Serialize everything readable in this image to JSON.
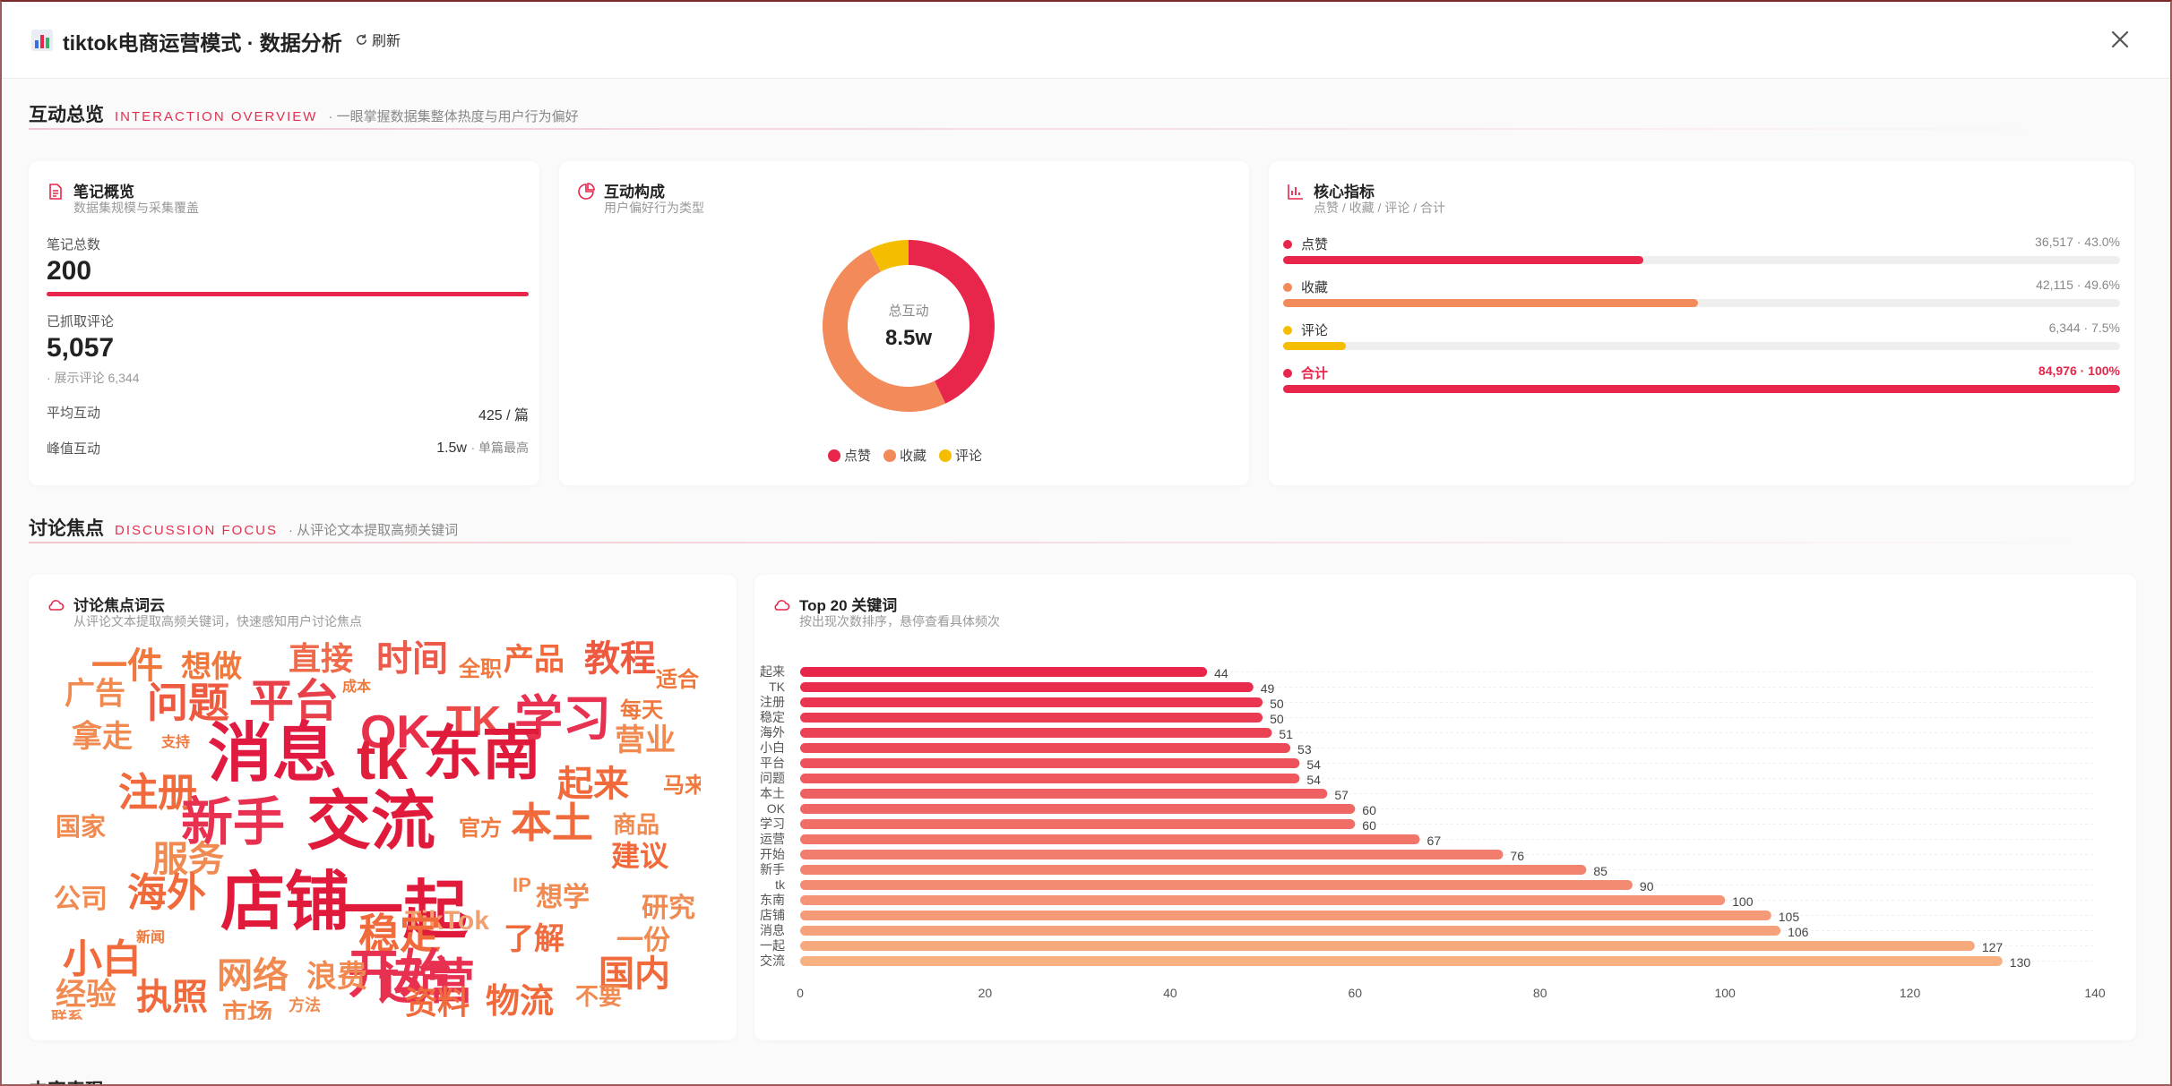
{
  "window": {
    "title": "tiktok电商运营模式 · 数据分析",
    "refresh_label": "刷新",
    "close_label": "×"
  },
  "colors": {
    "accent": "#e8254a",
    "like": "#e8254a",
    "collect": "#f28a5a",
    "comment": "#f5bd00"
  },
  "section1": {
    "title": "互动总览",
    "en": "INTERACTION OVERVIEW",
    "sub": "· 一眼掌握数据集整体热度与用户行为偏好"
  },
  "notes_card": {
    "title": "笔记概览",
    "subtitle": "数据集规模与采集覆盖",
    "total_label": "笔记总数",
    "total_value": "200",
    "comments_label": "已抓取评论",
    "comments_value": "5,057",
    "comments_note": "· 展示评论 6,344",
    "avg_label": "平均互动",
    "avg_value": "425 / 篇",
    "peak_label": "峰值互动",
    "peak_value": "1.5w",
    "peak_note": "· 单篇最高"
  },
  "composition_card": {
    "title": "互动构成",
    "subtitle": "用户偏好行为类型",
    "center_label": "总互动",
    "center_value": "8.5w",
    "legend": [
      "点赞",
      "收藏",
      "评论"
    ],
    "shares": [
      0.43,
      0.496,
      0.075
    ]
  },
  "core_card": {
    "title": "核心指标",
    "subtitle": "点赞 / 收藏 / 评论 / 合计",
    "rows": [
      {
        "name": "点赞",
        "value": "36,517 · 43.0%",
        "pct": 0.43
      },
      {
        "name": "收藏",
        "value": "42,115 · 49.6%",
        "pct": 0.496
      },
      {
        "name": "评论",
        "value": "6,344 · 7.5%",
        "pct": 0.075
      },
      {
        "name": "合计",
        "value": "84,976 · 100%",
        "pct": 1.0
      }
    ]
  },
  "section2": {
    "title": "讨论焦点",
    "en": "DISCUSSION FOCUS",
    "sub": "· 从评论文本提取高频关键词"
  },
  "wordcloud_card": {
    "title": "讨论焦点词云",
    "subtitle": "从评论文本提取高频关键词，快速感知用户讨论焦点",
    "words": [
      {
        "t": "一件",
        "s": 40,
        "c": "#f0783c"
      },
      {
        "t": "想做",
        "s": 34,
        "c": "#f0783c"
      },
      {
        "t": "直接",
        "s": 36,
        "c": "#ef6a4a"
      },
      {
        "t": "时间",
        "s": 40,
        "c": "#ee5a4a"
      },
      {
        "t": "全职",
        "s": 24,
        "c": "#f0783c"
      },
      {
        "t": "产品",
        "s": 34,
        "c": "#f06a3c"
      },
      {
        "t": "教程",
        "s": 40,
        "c": "#ee5a40"
      },
      {
        "t": "适合",
        "s": 24,
        "c": "#f0783c"
      },
      {
        "t": "广告",
        "s": 34,
        "c": "#f08a50"
      },
      {
        "t": "问题",
        "s": 46,
        "c": "#ee5a40"
      },
      {
        "t": "平台",
        "s": 50,
        "c": "#e8404a"
      },
      {
        "t": "成本",
        "s": 16,
        "c": "#f0783c"
      },
      {
        "t": "OK",
        "s": 52,
        "c": "#e8304a"
      },
      {
        "t": "TK",
        "s": 46,
        "c": "#ee4a4a"
      },
      {
        "t": "学习",
        "s": 54,
        "c": "#e83050"
      },
      {
        "t": "每天",
        "s": 24,
        "c": "#f0783c"
      },
      {
        "t": "营业",
        "s": 34,
        "c": "#f08a50"
      },
      {
        "t": "拿走",
        "s": 34,
        "c": "#f08a50"
      },
      {
        "t": "支持",
        "s": 16,
        "c": "#f0783c"
      },
      {
        "t": "消息",
        "s": 72,
        "c": "#e01a40"
      },
      {
        "t": "tk",
        "s": 64,
        "c": "#e0203a"
      },
      {
        "t": "东南",
        "s": 66,
        "c": "#e01a3a"
      },
      {
        "t": "注册",
        "s": 44,
        "c": "#f06a3c"
      },
      {
        "t": "起来",
        "s": 40,
        "c": "#f06a3c"
      },
      {
        "t": "马来",
        "s": 24,
        "c": "#f0783c"
      },
      {
        "t": "国家",
        "s": 28,
        "c": "#f08a50"
      },
      {
        "t": "新手",
        "s": 58,
        "c": "#e83050"
      },
      {
        "t": "交流",
        "s": 72,
        "c": "#e01a3a"
      },
      {
        "t": "官方",
        "s": 24,
        "c": "#f0783c"
      },
      {
        "t": "本土",
        "s": 46,
        "c": "#f06a3c"
      },
      {
        "t": "商品",
        "s": 26,
        "c": "#f08a50"
      },
      {
        "t": "服务",
        "s": 40,
        "c": "#f08a50"
      },
      {
        "t": "建议",
        "s": 32,
        "c": "#f06a3c"
      },
      {
        "t": "公司",
        "s": 30,
        "c": "#f08a50"
      },
      {
        "t": "海外",
        "s": 44,
        "c": "#f06a3c"
      },
      {
        "t": "店铺",
        "s": 72,
        "c": "#e01a3a"
      },
      {
        "t": "一起",
        "s": 72,
        "c": "#e01a3a"
      },
      {
        "t": "IP",
        "s": 22,
        "c": "#f08a50"
      },
      {
        "t": "TikTok",
        "s": 30,
        "c": "#f0a070"
      },
      {
        "t": "稳定",
        "s": 46,
        "c": "#f06a3c"
      },
      {
        "t": "想学",
        "s": 30,
        "c": "#f08a50"
      },
      {
        "t": "研究",
        "s": 30,
        "c": "#f08a50"
      },
      {
        "t": "小白",
        "s": 44,
        "c": "#f06a3c"
      },
      {
        "t": "新闻",
        "s": 16,
        "c": "#f0783c"
      },
      {
        "t": "开始",
        "s": 58,
        "c": "#e83050"
      },
      {
        "t": "运营",
        "s": 54,
        "c": "#e83050"
      },
      {
        "t": "了解",
        "s": 34,
        "c": "#f06a3c"
      },
      {
        "t": "一份",
        "s": 30,
        "c": "#f08a50"
      },
      {
        "t": "国内",
        "s": 40,
        "c": "#f06a3c"
      },
      {
        "t": "网络",
        "s": 40,
        "c": "#f08a50"
      },
      {
        "t": "浪费",
        "s": 34,
        "c": "#f08a50"
      },
      {
        "t": "经验",
        "s": 34,
        "c": "#f08a50"
      },
      {
        "t": "执照",
        "s": 40,
        "c": "#f06a3c"
      },
      {
        "t": "资料",
        "s": 36,
        "c": "#f06a3c"
      },
      {
        "t": "物流",
        "s": 38,
        "c": "#f06a3c"
      },
      {
        "t": "不要",
        "s": 26,
        "c": "#f08a50"
      },
      {
        "t": "市场",
        "s": 28,
        "c": "#f08a50"
      },
      {
        "t": "方法",
        "s": 18,
        "c": "#f08a50"
      },
      {
        "t": "联系",
        "s": 18,
        "c": "#f08a50"
      }
    ]
  },
  "top_card": {
    "title": "Top 20 关键词",
    "subtitle": "按出现次数排序，悬停查看具体频次"
  },
  "chart_data": {
    "type": "bar",
    "orientation": "horizontal",
    "title": "Top 20 关键词",
    "categories": [
      "起来",
      "TK",
      "注册",
      "稳定",
      "海外",
      "小白",
      "平台",
      "问题",
      "本土",
      "OK",
      "学习",
      "运营",
      "开始",
      "新手",
      "tk",
      "东南",
      "店铺",
      "消息",
      "一起",
      "交流"
    ],
    "values": [
      44,
      49,
      50,
      50,
      51,
      53,
      54,
      54,
      57,
      60,
      60,
      67,
      76,
      85,
      90,
      100,
      105,
      106,
      127,
      130
    ],
    "xlim": [
      0,
      140
    ],
    "xticks": [
      0,
      20,
      40,
      60,
      80,
      100,
      120,
      140
    ],
    "grid": true
  },
  "section3": {
    "title": "内容表现"
  }
}
